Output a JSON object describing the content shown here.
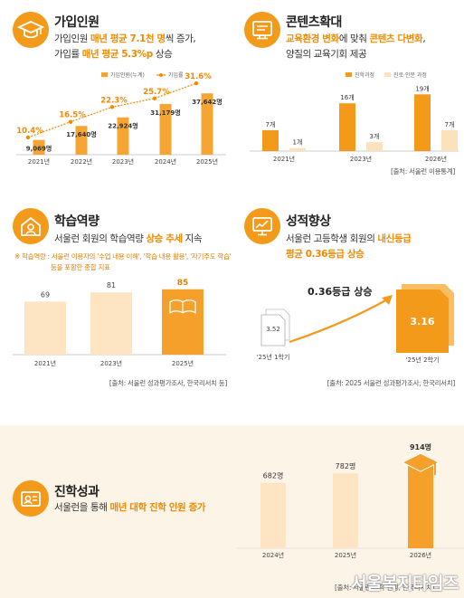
{
  "sections": {
    "join": {
      "title": "가입인원",
      "line1_pre": "가입인원 ",
      "line1_hl": "매년 평균 7.1천 명",
      "line1_post": "씩 증가,",
      "line2_pre": "가입률 ",
      "line2_hl": "매년 평균 5.3%p",
      "line2_post": " 상승"
    },
    "content": {
      "title": "콘텐츠확대",
      "line1_hl1": "교육환경 변화",
      "line1_mid": "에 맞춰 ",
      "line1_hl2": "콘텐츠 다변화",
      "line1_post": ",",
      "line2": "양질의 교육기회 제공",
      "source": "[출처: 서울런 이용통계]"
    },
    "learning": {
      "title": "학습역량",
      "line1_pre": "서울런 회원의 학습역량 ",
      "line1_hl": "상승 추세",
      "line1_post": " 지속",
      "note1": "※ 학습역량 : 서울런 이용자의 '수업 내용 이해', '학습 내용 활용', '자기주도 학습'",
      "note2": "등을 포함한 종합 지표",
      "source": "[출처: 서울런 성과평가조사, 한국리서치 등]"
    },
    "grades": {
      "title": "성적향상",
      "line1_pre": "서울런 고등학생 회원의 ",
      "line1_hl": "내신등급",
      "line2_hl": "평균 0.36등급 상승",
      "source": "[출처: 2025 서울런 성과평가조사, 한국리서치]"
    },
    "admission": {
      "title": "진학성과",
      "line1_pre": "서울런을 통해 ",
      "line1_hl": "매년 대학 진학 인원 증가",
      "source": "[출처: 서울런 진학 현황, 한국리서치]"
    }
  },
  "watermark": "서울복지타임즈",
  "chart_data": [
    {
      "type": "bar",
      "id": "join",
      "categories": [
        "2021년",
        "2022년",
        "2023년",
        "2024년",
        "2025년"
      ],
      "series": [
        {
          "name": "가입인원(누계)",
          "values": [
            9069,
            17640,
            22924,
            31179,
            37642
          ],
          "labels": [
            "9,069명",
            "17,640명",
            "22,924명",
            "31,179명",
            "37,642명"
          ]
        },
        {
          "name": "가입률",
          "type": "line",
          "values": [
            10.4,
            16.5,
            22.3,
            25.7,
            31.6
          ],
          "labels": [
            "10.4%",
            "16.5%",
            "22.3%",
            "25.7%",
            "31.6%"
          ]
        }
      ],
      "legend": "top",
      "colors": {
        "bar": "#f5a531",
        "line": "#f08a00"
      }
    },
    {
      "type": "bar",
      "id": "content",
      "categories": [
        "2021년",
        "2023년",
        "2026년"
      ],
      "series": [
        {
          "name": "진학과정",
          "values": [
            7,
            16,
            19
          ],
          "labels": [
            "7개",
            "16개",
            "19개"
          ]
        },
        {
          "name": "진로·인문 과정",
          "values": [
            1,
            3,
            7
          ],
          "labels": [
            "1개",
            "3개",
            "7개"
          ]
        }
      ],
      "legend": "top",
      "colors": {
        "a": "#f39a1b",
        "b": "#fbe2bd"
      }
    },
    {
      "type": "bar",
      "id": "learning",
      "categories": [
        "2021년",
        "2023년",
        "2025년"
      ],
      "values": [
        69,
        81,
        85
      ],
      "labels": [
        "69",
        "81",
        "85"
      ],
      "colors": {
        "base": "#fde4c2",
        "last": "#f5a02a"
      }
    },
    {
      "type": "bar",
      "id": "grades",
      "categories": [
        "'25년 1학기",
        "'25년 2학기"
      ],
      "values": [
        3.52,
        3.16
      ],
      "labels": [
        "3.52",
        "3.16"
      ],
      "annotation": "0.36등급 상승"
    },
    {
      "type": "bar",
      "id": "admission",
      "categories": [
        "2024년",
        "2025년",
        "2026년"
      ],
      "values": [
        682,
        782,
        914
      ],
      "labels": [
        "682명",
        "782명",
        "914명"
      ],
      "colors": {
        "base": "#fde4c2",
        "last": "#f5a02a"
      }
    }
  ]
}
